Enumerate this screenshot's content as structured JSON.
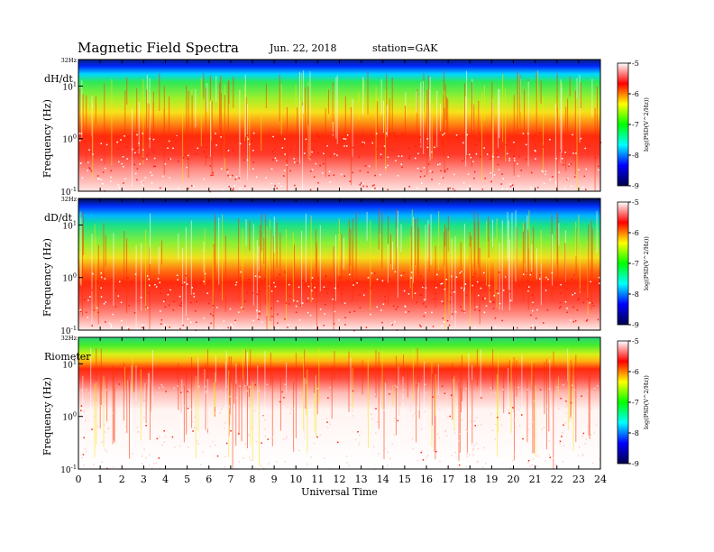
{
  "title": "Magnetic  Field  Spectra",
  "date": "Jun. 22, 2018",
  "station": "station=GAK",
  "xlabel": "Universal Time",
  "x_ticks": [
    "0",
    "1",
    "2",
    "3",
    "4",
    "5",
    "6",
    "7",
    "8",
    "9",
    "10",
    "11",
    "12",
    "13",
    "14",
    "15",
    "16",
    "17",
    "18",
    "19",
    "20",
    "21",
    "22",
    "23",
    "24"
  ],
  "colorbar": {
    "label": "log(PSD(V^2/Hz))",
    "ticks": [
      "-5",
      "-6",
      "-7",
      "-8",
      "-9"
    ],
    "colors": [
      "#ffffff",
      "#ff0000",
      "#ffff00",
      "#00ff00",
      "#00ffff",
      "#0000ff",
      "#00004a"
    ]
  },
  "chart_data": [
    {
      "type": "heatmap",
      "panel_label": "dH/dt",
      "ylabel": "Frequency (Hz)",
      "y_ticks": [
        "32Hz",
        "10^1",
        "10^0",
        "10^-1"
      ],
      "x_range": [
        0,
        24
      ],
      "y_range_hz": [
        0.1,
        32
      ],
      "color_range": [
        -9,
        -5
      ],
      "yscale": "log"
    },
    {
      "type": "heatmap",
      "panel_label": "dD/dt",
      "ylabel": "Frequency (Hz)",
      "y_ticks": [
        "32Hz",
        "10^1",
        "10^0",
        "10^-1"
      ],
      "x_range": [
        0,
        24
      ],
      "y_range_hz": [
        0.1,
        32
      ],
      "color_range": [
        -9,
        -5
      ],
      "yscale": "log"
    },
    {
      "type": "heatmap",
      "panel_label": "Riometer",
      "ylabel": "Frequency (Hz)",
      "y_ticks": [
        "32Hz",
        "10^1",
        "10^0",
        "10^-1"
      ],
      "x_range": [
        0,
        24
      ],
      "y_range_hz": [
        0.1,
        32
      ],
      "color_range": [
        -9,
        -5
      ],
      "yscale": "log"
    }
  ]
}
